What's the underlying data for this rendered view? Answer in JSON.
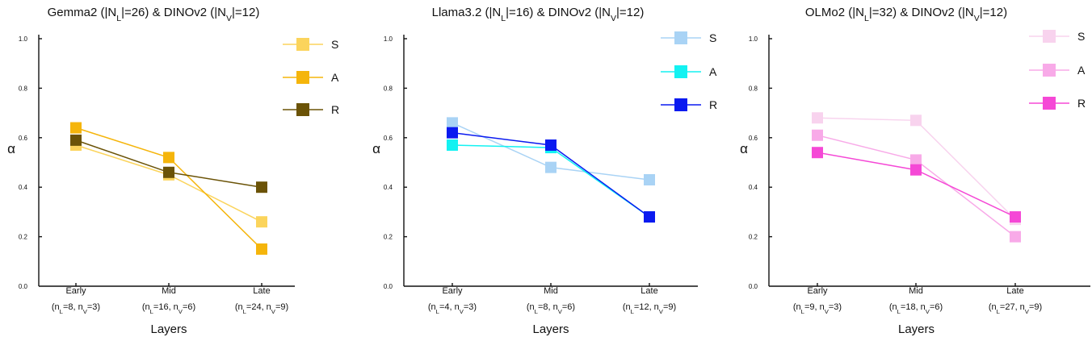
{
  "chart_data": [
    {
      "type": "line",
      "title": "Gemma2 (|N_L|=26) & DINOv2 (|N_V|=12)",
      "title_parts": {
        "model": "Gemma2",
        "nl": "26",
        "vision": "DINOv2",
        "nv": "12"
      },
      "xlabel": "Layers",
      "ylabel": "α",
      "ylim": [
        0.0,
        1.0
      ],
      "yticks": [
        "0.0",
        "0.2",
        "0.4",
        "0.6",
        "0.8",
        "1.0"
      ],
      "categories": [
        "Early",
        "Mid",
        "Late"
      ],
      "category_details": [
        {
          "nl": "8",
          "nv": "3"
        },
        {
          "nl": "16",
          "nv": "6"
        },
        {
          "nl": "24",
          "nv": "9"
        }
      ],
      "series": [
        {
          "name": "S",
          "color": "#FBD45C",
          "values": [
            0.57,
            0.45,
            0.26
          ]
        },
        {
          "name": "A",
          "color": "#F5B50B",
          "values": [
            0.64,
            0.52,
            0.15
          ]
        },
        {
          "name": "R",
          "color": "#6B5307",
          "values": [
            0.59,
            0.46,
            0.4
          ]
        }
      ],
      "legend_position": "top-right"
    },
    {
      "type": "line",
      "title": "Llama3.2 (|N_L|=16) & DINOv2 (|N_V|=12)",
      "title_parts": {
        "model": "Llama3.2",
        "nl": "16",
        "vision": "DINOv2",
        "nv": "12"
      },
      "xlabel": "Layers",
      "ylabel": "α",
      "ylim": [
        0.0,
        1.0
      ],
      "yticks": [
        "0.0",
        "0.2",
        "0.4",
        "0.6",
        "0.8",
        "1.0"
      ],
      "categories": [
        "Early",
        "Mid",
        "Late"
      ],
      "category_details": [
        {
          "nl": "4",
          "nv": "3"
        },
        {
          "nl": "8",
          "nv": "6"
        },
        {
          "nl": "12",
          "nv": "9"
        }
      ],
      "series": [
        {
          "name": "S",
          "color": "#A9D3F5",
          "values": [
            0.66,
            0.48,
            0.43
          ]
        },
        {
          "name": "A",
          "color": "#13F2F2",
          "values": [
            0.57,
            0.56,
            0.28
          ]
        },
        {
          "name": "R",
          "color": "#0A1AF0",
          "values": [
            0.62,
            0.57,
            0.28
          ]
        }
      ],
      "legend_position": "top-right"
    },
    {
      "type": "line",
      "title": "OLMo2 (|N_L|=32) & DINOv2 (|N_V|=12)",
      "title_parts": {
        "model": "OLMo2",
        "nl": "32",
        "vision": "DINOv2",
        "nv": "12"
      },
      "xlabel": "Layers",
      "ylabel": "α",
      "ylim": [
        0.0,
        1.0
      ],
      "yticks": [
        "0.0",
        "0.2",
        "0.4",
        "0.6",
        "0.8",
        "1.0"
      ],
      "categories": [
        "Early",
        "Mid",
        "Late"
      ],
      "category_details": [
        {
          "nl": "9",
          "nv": "3"
        },
        {
          "nl": "18",
          "nv": "6"
        },
        {
          "nl": "27",
          "nv": "9"
        }
      ],
      "series": [
        {
          "name": "S",
          "color": "#F8D3EE",
          "values": [
            0.68,
            0.67,
            0.27
          ]
        },
        {
          "name": "A",
          "color": "#F8AAE8",
          "values": [
            0.61,
            0.51,
            0.2
          ]
        },
        {
          "name": "R",
          "color": "#F548D6",
          "values": [
            0.54,
            0.47,
            0.28
          ]
        }
      ],
      "legend_position": "top-right"
    }
  ]
}
